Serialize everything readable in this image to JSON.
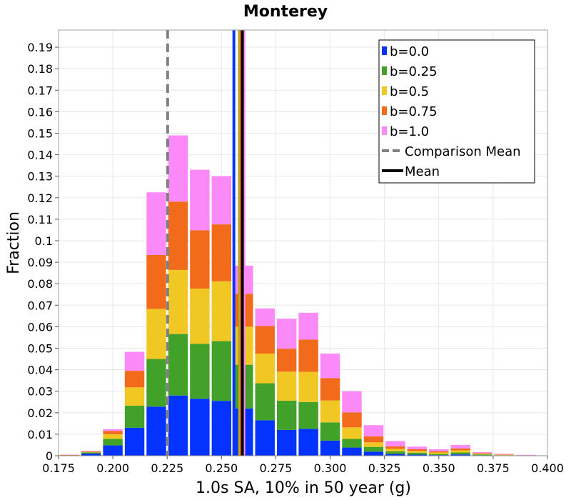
{
  "chart_data": {
    "type": "bar",
    "stacked": true,
    "title": "Monterey",
    "xlabel": "1.0s SA, 10% in 50 year (g)",
    "ylabel": "Fraction",
    "xlim": [
      0.175,
      0.4
    ],
    "ylim": [
      0,
      0.198
    ],
    "grid": true,
    "legend_position": "top-right",
    "bin_width": 0.01,
    "x_ticks": [
      "0.175",
      "0.200",
      "0.225",
      "0.250",
      "0.275",
      "0.300",
      "0.325",
      "0.350",
      "0.375",
      "0.400"
    ],
    "y_ticks": [
      "0",
      "0.01",
      "0.02",
      "0.03",
      "0.04",
      "0.05",
      "0.06",
      "0.07",
      "0.08",
      "0.09",
      "0.1",
      "0.11",
      "0.12",
      "0.13",
      "0.14",
      "0.15",
      "0.16",
      "0.17",
      "0.18",
      "0.19"
    ],
    "bin_centers": [
      0.18,
      0.19,
      0.2,
      0.21,
      0.22,
      0.23,
      0.24,
      0.25,
      0.26,
      0.27,
      0.28,
      0.29,
      0.3,
      0.31,
      0.32,
      0.33,
      0.34,
      0.35,
      0.36,
      0.37,
      0.38,
      0.39
    ],
    "series": [
      {
        "name": "b=0.0",
        "color": "#0433ff",
        "values": [
          0.0001,
          0.001,
          0.0048,
          0.013,
          0.0228,
          0.028,
          0.0265,
          0.0255,
          0.022,
          0.0165,
          0.012,
          0.0125,
          0.007,
          0.0038,
          0.0019,
          0.0008,
          0.0005,
          0.0003,
          0.0006,
          0.0002,
          0.0001,
          0.0
        ]
      },
      {
        "name": "b=0.25",
        "color": "#41a129",
        "values": [
          0.0001,
          0.0005,
          0.003,
          0.0103,
          0.0222,
          0.0286,
          0.0255,
          0.0278,
          0.0203,
          0.0172,
          0.0136,
          0.0125,
          0.0085,
          0.004,
          0.0022,
          0.0012,
          0.0009,
          0.0005,
          0.0009,
          0.0004,
          0.0001,
          0.0
        ]
      },
      {
        "name": "b=0.5",
        "color": "#f1c723",
        "values": [
          0.0001,
          0.0002,
          0.0022,
          0.0085,
          0.0233,
          0.0298,
          0.0257,
          0.0278,
          0.0177,
          0.0138,
          0.0135,
          0.014,
          0.0102,
          0.0054,
          0.0021,
          0.0012,
          0.0008,
          0.0007,
          0.001,
          0.0003,
          0.0002,
          0.0001
        ]
      },
      {
        "name": "b=0.75",
        "color": "#f26b1b",
        "values": [
          0.0001,
          0.0003,
          0.0015,
          0.0077,
          0.0251,
          0.0318,
          0.0272,
          0.0265,
          0.0153,
          0.0128,
          0.0107,
          0.015,
          0.0104,
          0.0069,
          0.0028,
          0.0012,
          0.0008,
          0.0006,
          0.0009,
          0.0003,
          0.0002,
          0.0001
        ]
      },
      {
        "name": "b=1.0",
        "color": "#fb89f8",
        "values": [
          0.0001,
          0.0002,
          0.0008,
          0.0088,
          0.0291,
          0.0308,
          0.0281,
          0.0224,
          0.0131,
          0.0082,
          0.0139,
          0.0125,
          0.0114,
          0.0099,
          0.0052,
          0.0024,
          0.0012,
          0.0009,
          0.0016,
          0.0005,
          0.0003,
          0.0002
        ]
      }
    ],
    "vertical_lines": [
      {
        "name": "Comparison Mean",
        "color": "#808080",
        "dashed": true,
        "x": 0.2252
      },
      {
        "name": "b=0.0",
        "color": "#0433ff",
        "x": 0.2557
      },
      {
        "name": "b=0.25",
        "color": "#41a129",
        "x": 0.2583
      },
      {
        "name": "b=0.5",
        "color": "#f1c723",
        "x": 0.2586
      },
      {
        "name": "b=0.75",
        "color": "#f26b1b",
        "x": 0.2589
      },
      {
        "name": "b=1.0",
        "color": "#fb89f8",
        "x": 0.2603
      },
      {
        "name": "Mean",
        "color": "#000000",
        "x": 0.2596
      }
    ],
    "legend": [
      {
        "label": "b=0.0",
        "color": "#0433ff",
        "kind": "box"
      },
      {
        "label": "b=0.25",
        "color": "#41a129",
        "kind": "box"
      },
      {
        "label": "b=0.5",
        "color": "#f1c723",
        "kind": "box"
      },
      {
        "label": "b=0.75",
        "color": "#f26b1b",
        "kind": "box"
      },
      {
        "label": "b=1.0",
        "color": "#fb89f8",
        "kind": "box"
      },
      {
        "label": "Comparison Mean",
        "color": "#808080",
        "kind": "dashed-line"
      },
      {
        "label": "Mean",
        "color": "#000000",
        "kind": "line"
      }
    ]
  }
}
